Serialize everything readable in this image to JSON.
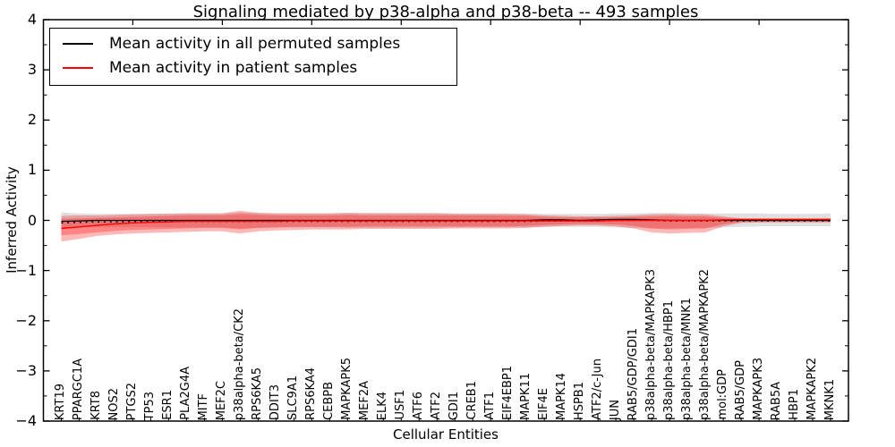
{
  "chart_data": {
    "type": "line",
    "title": "Signaling mediated by p38-alpha and p38-beta -- 493 samples",
    "xlabel": "Cellular Entities",
    "ylabel": "Inferred Activity",
    "ylim": [
      -4,
      4
    ],
    "xlim": [
      0,
      45
    ],
    "grid": false,
    "legend_position": "upper left",
    "yticks": {
      "values": [
        4,
        3,
        2,
        1,
        0,
        -1,
        -2,
        -3,
        -4
      ],
      "labels": [
        "4",
        "3",
        "2",
        "1",
        "0",
        "−1",
        "−2",
        "−3",
        "−4"
      ],
      "minor_step": 0.5
    },
    "xticks_top": [
      5,
      10,
      15,
      20,
      25,
      30,
      35,
      40
    ],
    "categories": [
      "KRT19",
      "PPARGC1A",
      "KRT8",
      "NOS2",
      "PTGS2",
      "TP53",
      "ESR1",
      "PLA2G4A",
      "MITF",
      "MEF2C",
      "p38alpha-beta/CK2",
      "RPS6KA5",
      "DDIT3",
      "SLC9A1",
      "RPS6KA4",
      "CEBPB",
      "MAPKAPK5",
      "MEF2A",
      "ELK4",
      "USF1",
      "ATF6",
      "ATF2",
      "GDI1",
      "CREB1",
      "ATF1",
      "EIF4EBP1",
      "MAPK11",
      "EIF4E",
      "MAPK14",
      "HSPB1",
      "ATF2/c-Jun",
      "JUN",
      "RAB5/GDP/GDI1",
      "p38alpha-beta/MAPKAPK3",
      "p38alpha-beta/HBP1",
      "p38alpha-beta/MNK1",
      "p38alpha-beta/MAPKAPK2",
      "mol:GDP",
      "RAB5/GDP",
      "MAPKAPK3",
      "RAB5A",
      "HBP1",
      "MAPKAPK2",
      "MKNK1"
    ],
    "legend": [
      {
        "label": "Mean activity in all permuted samples",
        "color": "#000000"
      },
      {
        "label": "Mean activity in patient samples",
        "color": "#ff0000"
      }
    ],
    "series": [
      {
        "name": "permuted-mean",
        "color": "#000000",
        "style": "solid",
        "width": 1.2,
        "values": [
          -0.02,
          -0.01,
          0,
          0,
          0,
          0,
          0,
          0,
          0,
          0,
          0,
          0,
          0,
          0,
          0,
          0,
          0,
          0,
          0,
          0,
          0,
          0,
          0,
          0,
          0,
          0,
          0,
          0.01,
          0.01,
          0,
          0.01,
          0.02,
          0.02,
          0.01,
          0,
          0,
          0,
          0,
          0,
          0,
          0,
          0,
          0,
          0
        ]
      },
      {
        "name": "permuted-median",
        "color": "#000000",
        "style": "dotted",
        "width": 1.6,
        "values": [
          -0.05,
          -0.04,
          -0.03,
          -0.03,
          -0.02,
          -0.02,
          -0.02,
          -0.02,
          -0.02,
          -0.02,
          -0.02,
          -0.02,
          -0.02,
          -0.02,
          -0.02,
          -0.02,
          -0.02,
          -0.02,
          -0.02,
          -0.02,
          -0.02,
          -0.02,
          -0.02,
          -0.02,
          -0.02,
          -0.02,
          -0.02,
          -0.01,
          -0.01,
          -0.01,
          -0.01,
          0,
          0,
          0,
          -0.01,
          -0.01,
          -0.01,
          -0.01,
          -0.01,
          -0.01,
          -0.01,
          -0.01,
          -0.01,
          -0.01
        ]
      },
      {
        "name": "patient-mean",
        "color": "#ff0000",
        "style": "solid",
        "width": 1.4,
        "values": [
          -0.16,
          -0.13,
          -0.1,
          -0.07,
          -0.05,
          -0.04,
          -0.03,
          -0.02,
          -0.02,
          -0.02,
          -0.02,
          -0.02,
          -0.02,
          -0.01,
          -0.01,
          -0.01,
          -0.01,
          -0.01,
          -0.01,
          -0.01,
          -0.01,
          -0.01,
          -0.01,
          -0.01,
          -0.01,
          -0.01,
          -0.01,
          -0.01,
          -0.01,
          -0.01,
          -0.01,
          0,
          0,
          0,
          0,
          0,
          0,
          0.01,
          0.02,
          0.02,
          0.02,
          0.02,
          0.02,
          0.02
        ]
      }
    ],
    "bands": [
      {
        "name": "permuted-spread",
        "color": "rgba(0,0,0,0.12)",
        "upper": [
          0.16,
          0.14,
          0.13,
          0.13,
          0.13,
          0.13,
          0.14,
          0.14,
          0.14,
          0.14,
          0.16,
          0.15,
          0.14,
          0.14,
          0.14,
          0.14,
          0.15,
          0.15,
          0.15,
          0.15,
          0.15,
          0.15,
          0.14,
          0.14,
          0.14,
          0.14,
          0.14,
          0.13,
          0.13,
          0.13,
          0.13,
          0.14,
          0.14,
          0.15,
          0.15,
          0.14,
          0.14,
          0.14,
          0.14,
          0.14,
          0.13,
          0.13,
          0.13,
          0.14
        ],
        "lower": [
          -0.15,
          -0.14,
          -0.13,
          -0.13,
          -0.13,
          -0.13,
          -0.14,
          -0.14,
          -0.14,
          -0.14,
          -0.16,
          -0.15,
          -0.14,
          -0.14,
          -0.14,
          -0.14,
          -0.15,
          -0.15,
          -0.15,
          -0.15,
          -0.15,
          -0.15,
          -0.14,
          -0.14,
          -0.14,
          -0.14,
          -0.14,
          -0.13,
          -0.13,
          -0.13,
          -0.13,
          -0.14,
          -0.15,
          -0.16,
          -0.16,
          -0.15,
          -0.15,
          -0.14,
          -0.13,
          -0.12,
          -0.12,
          -0.12,
          -0.12,
          -0.12
        ]
      },
      {
        "name": "patient-spread-outer",
        "color": "rgba(255,0,0,0.28)",
        "upper": [
          0.09,
          0.1,
          0.1,
          0.11,
          0.12,
          0.13,
          0.13,
          0.14,
          0.14,
          0.14,
          0.19,
          0.15,
          0.14,
          0.14,
          0.14,
          0.14,
          0.15,
          0.14,
          0.14,
          0.14,
          0.14,
          0.14,
          0.13,
          0.13,
          0.13,
          0.13,
          0.12,
          0.1,
          0.09,
          0.08,
          0.08,
          0.09,
          0.1,
          0.12,
          0.13,
          0.12,
          0.12,
          0.08,
          0.04,
          0.04,
          0.04,
          0.04,
          0.04,
          0.04
        ],
        "lower": [
          -0.42,
          -0.37,
          -0.31,
          -0.28,
          -0.26,
          -0.25,
          -0.24,
          -0.23,
          -0.22,
          -0.22,
          -0.26,
          -0.22,
          -0.2,
          -0.19,
          -0.18,
          -0.18,
          -0.18,
          -0.17,
          -0.17,
          -0.17,
          -0.17,
          -0.17,
          -0.16,
          -0.16,
          -0.16,
          -0.16,
          -0.15,
          -0.13,
          -0.11,
          -0.1,
          -0.1,
          -0.12,
          -0.16,
          -0.24,
          -0.26,
          -0.25,
          -0.24,
          -0.12,
          -0.05,
          -0.04,
          -0.04,
          -0.04,
          -0.04,
          -0.04
        ]
      },
      {
        "name": "patient-spread-inner",
        "color": "rgba(255,0,0,0.28)",
        "upper": [
          0.03,
          0.04,
          0.05,
          0.06,
          0.07,
          0.08,
          0.09,
          0.1,
          0.1,
          0.1,
          0.13,
          0.11,
          0.1,
          0.1,
          0.1,
          0.1,
          0.11,
          0.1,
          0.1,
          0.1,
          0.1,
          0.1,
          0.1,
          0.1,
          0.1,
          0.09,
          0.09,
          0.07,
          0.06,
          0.06,
          0.06,
          0.06,
          0.07,
          0.08,
          0.09,
          0.08,
          0.08,
          0.05,
          0.03,
          0.03,
          0.03,
          0.03,
          0.03,
          0.03
        ],
        "lower": [
          -0.3,
          -0.27,
          -0.24,
          -0.21,
          -0.19,
          -0.18,
          -0.17,
          -0.16,
          -0.15,
          -0.15,
          -0.18,
          -0.15,
          -0.14,
          -0.13,
          -0.13,
          -0.13,
          -0.13,
          -0.12,
          -0.12,
          -0.12,
          -0.12,
          -0.12,
          -0.12,
          -0.12,
          -0.12,
          -0.12,
          -0.11,
          -0.09,
          -0.08,
          -0.07,
          -0.07,
          -0.08,
          -0.11,
          -0.16,
          -0.18,
          -0.17,
          -0.16,
          -0.08,
          -0.03,
          -0.03,
          -0.03,
          -0.03,
          -0.03,
          -0.03
        ]
      }
    ]
  }
}
